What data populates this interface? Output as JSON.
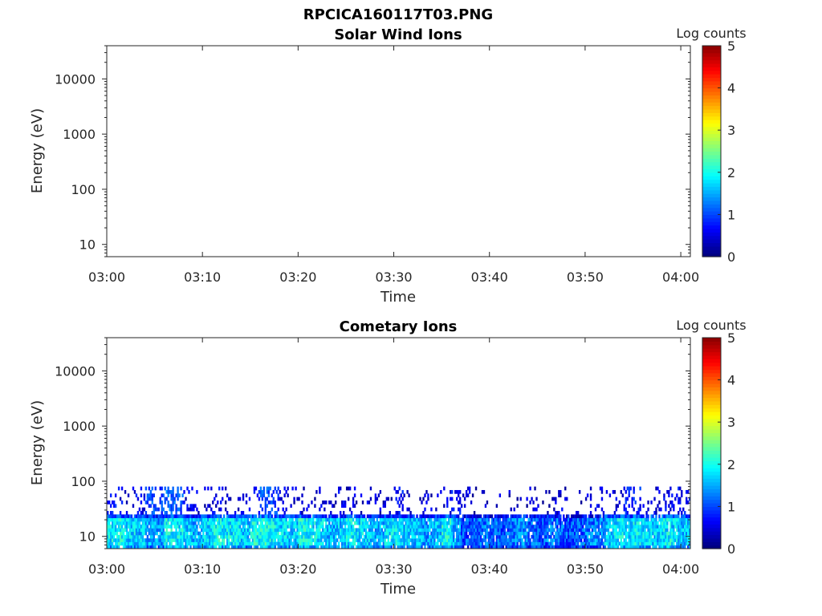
{
  "figure": {
    "title": "RPCICA160117T03.PNG"
  },
  "chart_data": [
    {
      "type": "heatmap",
      "title": "Solar Wind Ions",
      "xlabel": "Time",
      "ylabel": "Energy (eV)",
      "x_ticks": [
        "03:00",
        "03:10",
        "03:20",
        "03:30",
        "03:40",
        "03:50",
        "04:00"
      ],
      "xlim": [
        "03:00",
        "04:01"
      ],
      "y_scale": "log",
      "y_ticks": [
        10,
        100,
        1000,
        10000
      ],
      "y_tick_labels": [
        "10",
        "100",
        "1000",
        "10000"
      ],
      "ylim": [
        6,
        40000
      ],
      "colorbar": {
        "label": "Log counts",
        "ticks": [
          "0",
          "1",
          "2",
          "3",
          "4",
          "5"
        ],
        "range": [
          0,
          5
        ],
        "colormap": "jet"
      },
      "cells": []
    },
    {
      "type": "heatmap",
      "title": "Cometary Ions",
      "xlabel": "Time",
      "ylabel": "Energy (eV)",
      "x_ticks": [
        "03:00",
        "03:10",
        "03:20",
        "03:30",
        "03:40",
        "03:50",
        "04:00"
      ],
      "xlim": [
        "03:00",
        "04:01"
      ],
      "y_scale": "log",
      "y_ticks": [
        10,
        100,
        1000,
        10000
      ],
      "y_tick_labels": [
        "10",
        "100",
        "1000",
        "10000"
      ],
      "ylim": [
        6,
        40000
      ],
      "colorbar": {
        "label": "Log counts",
        "ticks": [
          "0",
          "1",
          "2",
          "3",
          "4",
          "5"
        ],
        "range": [
          0,
          5
        ],
        "colormap": "jet"
      },
      "energy_band_low_eV": [
        6,
        25
      ],
      "energy_band_sparse_eV": [
        25,
        80
      ],
      "column_minutes": [
        "03:00",
        "03:01",
        "03:02",
        "03:03",
        "03:04",
        "03:05",
        "03:06",
        "03:07",
        "03:08",
        "03:09",
        "03:10",
        "03:11",
        "03:12",
        "03:13",
        "03:14",
        "03:15",
        "03:16",
        "03:17",
        "03:18",
        "03:19",
        "03:20",
        "03:21",
        "03:22",
        "03:23",
        "03:24",
        "03:25",
        "03:26",
        "03:27",
        "03:28",
        "03:29",
        "03:30",
        "03:31",
        "03:32",
        "03:33",
        "03:34",
        "03:35",
        "03:36",
        "03:37",
        "03:38",
        "03:39",
        "03:40",
        "03:41",
        "03:42",
        "03:43",
        "03:44",
        "03:45",
        "03:46",
        "03:47",
        "03:48",
        "03:49",
        "03:50",
        "03:51",
        "03:52",
        "03:53",
        "03:54",
        "03:55",
        "03:56",
        "03:57",
        "03:58",
        "03:59",
        "04:00"
      ],
      "low_band_log_counts": [
        1.8,
        1.9,
        1.7,
        1.6,
        1.5,
        1.4,
        1.9,
        1.8,
        1.6,
        1.5,
        1.7,
        1.9,
        1.8,
        1.7,
        1.6,
        1.9,
        2.0,
        1.8,
        1.7,
        1.6,
        1.9,
        1.8,
        1.7,
        1.5,
        1.6,
        1.8,
        1.7,
        1.6,
        1.5,
        1.7,
        1.8,
        1.6,
        1.5,
        1.4,
        1.6,
        1.9,
        1.5,
        1.0,
        1.1,
        1.2,
        1.1,
        1.0,
        1.2,
        1.3,
        1.1,
        1.0,
        1.2,
        1.1,
        1.0,
        1.1,
        1.2,
        1.3,
        1.6,
        1.8,
        1.7,
        1.8,
        1.7,
        1.6,
        1.8,
        1.7,
        1.6
      ],
      "sparse_band_log_counts": [
        0.6,
        0.4,
        0.3,
        0.5,
        0.9,
        0.8,
        1.0,
        0.9,
        0.4,
        0.3,
        0.3,
        0.4,
        0.3,
        0.2,
        0.3,
        0.5,
        0.9,
        0.8,
        0.4,
        0.3,
        0.3,
        0.2,
        0.3,
        0.2,
        0.4,
        0.3,
        0.2,
        0.3,
        0.2,
        0.3,
        0.5,
        0.3,
        0.2,
        0.3,
        0.2,
        0.4,
        0.5,
        0.3,
        0.2,
        0.2,
        0.2,
        0.3,
        0.2,
        0.2,
        0.3,
        0.2,
        0.3,
        0.3,
        0.2,
        0.3,
        0.3,
        0.4,
        0.3,
        0.4,
        0.7,
        0.6,
        0.3,
        0.3,
        0.4,
        0.5,
        0.5
      ]
    }
  ]
}
